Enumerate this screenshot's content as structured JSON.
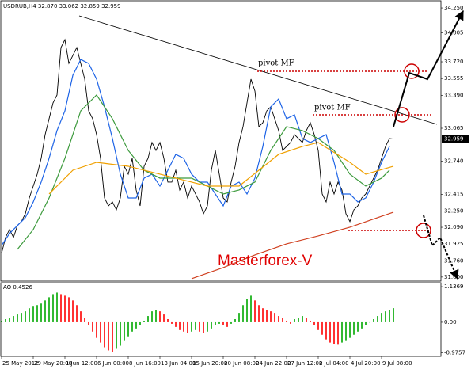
{
  "chart_data": [
    {
      "type": "line",
      "header": "USDRUB,H4  32.870 33.062 32.859 32.959",
      "xlim": [
        0,
        222
      ],
      "ylim": [
        31.56,
        34.305
      ],
      "yticks": [
        {
          "value": 34.25,
          "label": "34.250"
        },
        34.005,
        {
          "value": 33.72,
          "label": "33.720"
        },
        33.555,
        {
          "value": 33.39,
          "label": "33.390"
        },
        33.065,
        {
          "value": 32.74,
          "label": "32.740"
        },
        32.415,
        {
          "value": 32.25,
          "label": "32.250"
        },
        {
          "value": 32.09,
          "label": "32.090"
        },
        31.925,
        {
          "value": 31.76,
          "label": "31.760"
        },
        {
          "value": 31.6,
          "label": "31.600"
        }
      ],
      "last_price": {
        "value": 32.959,
        "label": "32.959"
      },
      "annotations": [
        "pivot MF",
        "pivot MF"
      ],
      "watermark": "Masterforex-V",
      "series": [
        {
          "color": "#000000",
          "x": [
            0,
            2,
            4,
            6,
            8,
            10,
            12,
            14,
            16,
            18,
            20,
            22,
            24,
            26,
            28,
            30,
            32,
            34,
            36,
            38,
            40,
            42,
            44,
            46,
            48,
            50,
            52,
            54,
            56,
            58,
            60,
            62,
            64,
            66,
            68,
            70,
            72,
            74,
            76,
            78,
            80,
            82,
            84,
            86,
            88,
            90,
            92,
            94,
            96,
            98,
            100,
            102,
            104,
            106,
            108,
            110,
            112,
            114,
            116,
            118,
            120,
            122,
            124,
            126,
            128,
            130,
            132,
            134,
            136,
            138,
            140,
            142,
            144,
            146,
            148,
            150,
            152,
            154,
            156,
            158,
            160,
            162,
            164,
            166,
            168,
            170,
            172,
            174,
            176,
            178,
            180,
            182,
            184,
            186,
            188,
            190,
            192,
            194,
            196,
            198
          ],
          "values": [
            31.834,
            31.99,
            32.068,
            31.99,
            32.107,
            32.146,
            32.223,
            32.379,
            32.496,
            32.613,
            32.769,
            33.003,
            33.159,
            33.315,
            33.393,
            33.86,
            33.938,
            33.704,
            33.782,
            33.86,
            33.704,
            33.549,
            33.237,
            33.159,
            33.003,
            32.769,
            32.379,
            32.301,
            32.34,
            32.262,
            32.379,
            32.691,
            32.613,
            32.769,
            32.457,
            32.301,
            32.691,
            32.769,
            32.925,
            32.847,
            32.925,
            32.769,
            32.535,
            32.535,
            32.652,
            32.457,
            32.535,
            32.379,
            32.496,
            32.418,
            32.34,
            32.223,
            32.301,
            32.652,
            32.847,
            32.613,
            32.379,
            32.34,
            32.535,
            32.691,
            32.925,
            33.081,
            33.315,
            33.549,
            33.432,
            33.081,
            33.12,
            33.237,
            33.276,
            33.159,
            33.042,
            32.847,
            32.886,
            32.925,
            33.003,
            32.964,
            32.925,
            33.042,
            33.12,
            33.003,
            32.847,
            32.418,
            32.34,
            32.535,
            32.418,
            32.535,
            32.457,
            32.223,
            32.146,
            32.262,
            32.301,
            32.379,
            32.418,
            32.496,
            32.574,
            32.652,
            32.769,
            32.886,
            32.964,
            32.959
          ]
        },
        {
          "color": "#1e64e6",
          "x": [
            0,
            4,
            8,
            12,
            16,
            20,
            24,
            28,
            32,
            36,
            40,
            44,
            48,
            52,
            56,
            60,
            64,
            68,
            72,
            76,
            80,
            84,
            88,
            92,
            96,
            100,
            104,
            108,
            112,
            116,
            120,
            124,
            128,
            132,
            136,
            140,
            144,
            148,
            152,
            156,
            160,
            164,
            168,
            172,
            176,
            180,
            184,
            188,
            192,
            196
          ],
          "values": [
            31.912,
            32.029,
            32.107,
            32.185,
            32.34,
            32.535,
            32.769,
            33.042,
            33.237,
            33.587,
            33.743,
            33.704,
            33.549,
            33.276,
            32.964,
            32.613,
            32.379,
            32.379,
            32.574,
            32.613,
            32.496,
            32.652,
            32.808,
            32.769,
            32.613,
            32.535,
            32.535,
            32.418,
            32.301,
            32.496,
            32.535,
            32.418,
            32.574,
            32.886,
            33.276,
            33.354,
            33.159,
            33.198,
            32.964,
            32.925,
            32.964,
            33.003,
            32.73,
            32.418,
            32.418,
            32.34,
            32.379,
            32.535,
            32.73,
            32.886
          ]
        },
        {
          "color": "#3c9a3c",
          "x": [
            8,
            16,
            24,
            32,
            40,
            48,
            56,
            64,
            72,
            80,
            88,
            96,
            104,
            112,
            120,
            128,
            136,
            144,
            152,
            160,
            168,
            176,
            184,
            192,
            196
          ],
          "values": [
            31.873,
            32.068,
            32.379,
            32.769,
            33.237,
            33.393,
            33.159,
            32.847,
            32.652,
            32.574,
            32.574,
            32.574,
            32.496,
            32.418,
            32.457,
            32.535,
            32.847,
            33.081,
            33.042,
            32.964,
            32.847,
            32.613,
            32.496,
            32.574,
            32.652
          ]
        },
        {
          "color": "#f0a000",
          "x": [
            24,
            36,
            48,
            64,
            80,
            96,
            104,
            120,
            140,
            152,
            160,
            176,
            184,
            198
          ],
          "values": [
            32.418,
            32.652,
            32.73,
            32.691,
            32.613,
            32.535,
            32.496,
            32.496,
            32.808,
            32.886,
            32.925,
            32.73,
            32.613,
            32.691
          ]
        },
        {
          "color": "#d04020",
          "x": [
            96,
            112,
            128,
            144,
            160,
            176,
            190,
            198
          ],
          "values": [
            31.584,
            31.693,
            31.818,
            31.927,
            32.005,
            32.091,
            32.185,
            32.239
          ]
        }
      ]
    },
    {
      "type": "bar",
      "header": "AO 0.4526",
      "xlim": [
        0,
        222
      ],
      "ylim": [
        -1.04,
        1.24
      ],
      "yticks": [
        1.1369,
        {
          "value": 0,
          "label": "0.00"
        },
        -0.9757
      ],
      "xticks": [
        {
          "value": 0,
          "label": "25 May 2012"
        },
        {
          "value": 16,
          "label": "29 May 20:00"
        },
        {
          "value": 32,
          "label": "1 Jun 12:00"
        },
        {
          "value": 48,
          "label": "6 Jun 00:00"
        },
        {
          "value": 64,
          "label": "8 Jun 16:00"
        },
        {
          "value": 80,
          "label": "13 Jun 04:00"
        },
        {
          "value": 96,
          "label": "15 Jun 20:00"
        },
        {
          "value": 112,
          "label": "20 Jun 08:00"
        },
        {
          "value": 128,
          "label": "24 Jun 22:00"
        },
        {
          "value": 144,
          "label": "27 Jun 12:00"
        },
        {
          "value": 160,
          "label": "2 Jul 04:00"
        },
        {
          "value": 176,
          "label": "4 Jul 20:00"
        },
        {
          "value": 192,
          "label": "9 Jul 08:00"
        }
      ],
      "up_color": "#00a800",
      "down_color": "#ff0000",
      "x": [
        0,
        2,
        4,
        6,
        8,
        10,
        12,
        14,
        16,
        18,
        20,
        22,
        24,
        26,
        28,
        30,
        32,
        34,
        36,
        38,
        40,
        42,
        44,
        46,
        48,
        50,
        52,
        54,
        56,
        58,
        60,
        62,
        64,
        66,
        68,
        70,
        72,
        74,
        76,
        78,
        80,
        82,
        84,
        86,
        88,
        90,
        92,
        94,
        96,
        98,
        100,
        102,
        104,
        106,
        108,
        110,
        112,
        114,
        116,
        118,
        120,
        122,
        124,
        126,
        128,
        130,
        132,
        134,
        136,
        138,
        140,
        142,
        144,
        146,
        148,
        150,
        152,
        154,
        156,
        158,
        160,
        162,
        164,
        166,
        168,
        170,
        172,
        174,
        176,
        178,
        180,
        182,
        184,
        186,
        188,
        190,
        192,
        194,
        196,
        198
      ],
      "values": [
        0.05,
        0.1,
        0.15,
        0.2,
        0.25,
        0.3,
        0.35,
        0.45,
        0.5,
        0.55,
        0.6,
        0.7,
        0.8,
        0.9,
        0.95,
        0.9,
        0.85,
        0.8,
        0.7,
        0.55,
        0.35,
        0.15,
        -0.1,
        -0.3,
        -0.5,
        -0.65,
        -0.8,
        -0.9,
        -0.95,
        -0.85,
        -0.75,
        -0.6,
        -0.45,
        -0.3,
        -0.2,
        -0.1,
        0.05,
        0.2,
        0.35,
        0.4,
        0.35,
        0.25,
        0.1,
        -0.05,
        -0.15,
        -0.25,
        -0.3,
        -0.35,
        -0.3,
        -0.25,
        -0.3,
        -0.35,
        -0.3,
        -0.2,
        -0.1,
        -0.05,
        -0.1,
        -0.15,
        -0.05,
        0.1,
        0.3,
        0.55,
        0.75,
        0.85,
        0.7,
        0.55,
        0.45,
        0.4,
        0.35,
        0.3,
        0.2,
        0.15,
        0.05,
        -0.05,
        0.1,
        0.15,
        0.2,
        0.15,
        0.05,
        -0.1,
        -0.25,
        -0.4,
        -0.55,
        -0.65,
        -0.7,
        -0.72,
        -0.65,
        -0.6,
        -0.5,
        -0.4,
        -0.3,
        -0.2,
        -0.1,
        0.0,
        0.1,
        0.2,
        0.3,
        0.35,
        0.4,
        0.4526
      ]
    }
  ]
}
